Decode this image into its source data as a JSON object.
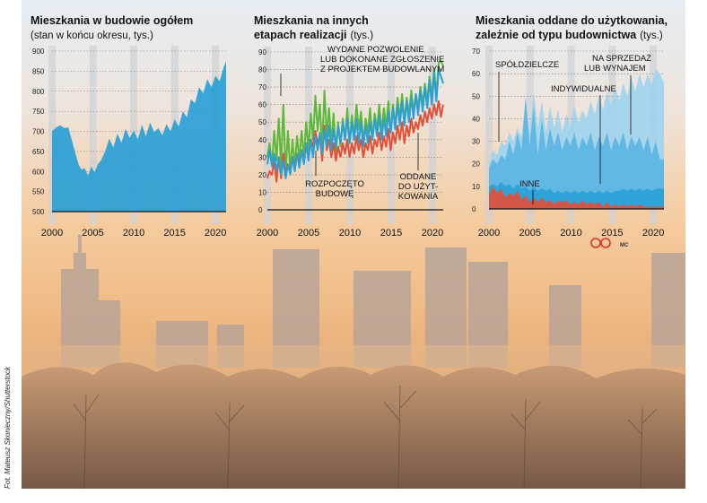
{
  "credit": "Fot. Mateusz Skonieczny/Shutterstock",
  "logo_text": "MC",
  "chart_data": [
    {
      "type": "area",
      "title": "Mieszkania w budowie ogółem",
      "subtitle": "(stan w końcu okresu, tys.)",
      "ylim": [
        500,
        900
      ],
      "yticks": [
        500,
        550,
        600,
        650,
        700,
        750,
        800,
        850,
        900
      ],
      "xlim": [
        2000,
        2021.3
      ],
      "xticks": [
        2000,
        2005,
        2010,
        2015,
        2020
      ],
      "color": "#2a9fd6",
      "series": [
        {
          "x": [
            2000,
            2000.5,
            2001,
            2001.5,
            2002,
            2002.5,
            2003,
            2003.3,
            2003.6,
            2004,
            2004.4,
            2004.8,
            2005.2,
            2005.6,
            2006,
            2006.5,
            2007,
            2007.5,
            2008,
            2008.5,
            2009,
            2009.5,
            2010,
            2010.5,
            2011,
            2011.5,
            2012,
            2012.5,
            2013,
            2013.5,
            2014,
            2014.5,
            2015,
            2015.5,
            2016,
            2016.5,
            2017,
            2017.5,
            2018,
            2018.5,
            2019,
            2019.5,
            2020,
            2020.5,
            2021,
            2021.3
          ],
          "values": [
            700,
            710,
            715,
            708,
            710,
            672,
            635,
            615,
            605,
            608,
            590,
            612,
            598,
            618,
            628,
            650,
            682,
            660,
            694,
            672,
            706,
            684,
            702,
            680,
            716,
            688,
            722,
            698,
            708,
            690,
            718,
            700,
            730,
            712,
            750,
            735,
            780,
            770,
            810,
            795,
            830,
            810,
            838,
            825,
            860,
            875
          ]
        }
      ]
    },
    {
      "type": "line",
      "title": "Mieszkania na innych etapach realizacji",
      "title_lines": [
        "Mieszkania na innych",
        "etapach realizacji"
      ],
      "title_unit": "(tys.)",
      "ylim": [
        0,
        90
      ],
      "yticks": [
        0,
        10,
        20,
        30,
        40,
        50,
        60,
        70,
        80,
        90
      ],
      "xlim": [
        2000,
        2021.3
      ],
      "xticks": [
        2000,
        2005,
        2010,
        2015,
        2020
      ],
      "annotations": [
        {
          "lines": [
            "WYDANE POZWOLENIE",
            "LUB DOKONANE ZGŁOSZENIE",
            "Z PROJEKTEM BUDOWLANYM"
          ]
        },
        {
          "lines": [
            "ROZPOCZĘTO",
            "BUDOWĘ"
          ]
        },
        {
          "lines": [
            "ODDANE",
            "DO UŻYT-",
            "KOWANIA"
          ]
        }
      ],
      "series": [
        {
          "name": "WYDANE POZWOLENIE LUB DOKONANE ZGŁOSZENIE Z PROJEKTEM BUDOWLANYM",
          "color": "#5cb83c",
          "values": [
            30,
            38,
            25,
            45,
            28,
            52,
            25,
            60,
            20,
            45,
            22,
            40,
            25,
            42,
            28,
            45,
            30,
            50,
            34,
            55,
            40,
            65,
            45,
            60,
            35,
            68,
            42,
            58,
            38,
            55,
            32,
            50,
            36,
            52,
            40,
            58,
            38,
            54,
            42,
            60,
            46,
            56,
            38,
            52,
            44,
            58,
            40,
            55,
            46,
            60,
            44,
            58,
            48,
            62,
            44,
            60,
            48,
            64,
            52,
            66,
            50,
            64,
            54,
            68,
            56,
            66,
            58,
            70,
            60,
            72,
            62,
            76,
            64,
            80,
            66,
            84,
            85,
            82
          ]
        },
        {
          "name": "ROZPOCZĘTO BUDOWĘ",
          "color": "#e2503a",
          "values": [
            18,
            22,
            20,
            28,
            16,
            30,
            18,
            32,
            20,
            26,
            22,
            30,
            24,
            32,
            26,
            34,
            28,
            36,
            30,
            40,
            36,
            45,
            38,
            42,
            28,
            48,
            34,
            40,
            30,
            38,
            28,
            36,
            30,
            38,
            32,
            40,
            30,
            38,
            32,
            42,
            34,
            40,
            30,
            38,
            34,
            42,
            32,
            40,
            36,
            44,
            34,
            42,
            36,
            46,
            34,
            44,
            38,
            48,
            40,
            50,
            38,
            48,
            42,
            52,
            44,
            50,
            46,
            54,
            48,
            56,
            50,
            58,
            52,
            60,
            54,
            62,
            53,
            60
          ]
        },
        {
          "name": "ODDANE DO UŻYTKOWANIA",
          "color": "#2a9fd6",
          "values": [
            26,
            34,
            25,
            32,
            22,
            30,
            20,
            28,
            18,
            26,
            20,
            30,
            22,
            32,
            24,
            34,
            26,
            38,
            28,
            40,
            30,
            42,
            34,
            44,
            32,
            46,
            36,
            48,
            34,
            46,
            36,
            48,
            38,
            50,
            40,
            52,
            38,
            50,
            40,
            52,
            38,
            50,
            36,
            48,
            38,
            50,
            40,
            52,
            42,
            54,
            40,
            52,
            42,
            56,
            44,
            58,
            46,
            60,
            48,
            62,
            48,
            62,
            50,
            64,
            52,
            66,
            54,
            68,
            56,
            70,
            58,
            74,
            60,
            78,
            62,
            80,
            76,
            72
          ]
        }
      ]
    },
    {
      "type": "area",
      "title": "Mieszkania oddane do użytkowania, zależnie od typu budownictwa",
      "title_lines": [
        "Mieszkania oddane do użytkowania,",
        "zależnie od typu budownictwa"
      ],
      "title_unit": "(tys.)",
      "ylim": [
        0,
        70
      ],
      "yticks": [
        0,
        10,
        20,
        30,
        40,
        50,
        60,
        70
      ],
      "xlim": [
        2000,
        2021.3
      ],
      "xticks": [
        2000,
        2005,
        2010,
        2015,
        2020
      ],
      "annotations": [
        "SPÓŁDZIELCZE",
        "INDYWIDUALNE",
        "NA SPRZEDAŻ LUB WYNAJEM",
        "INNE"
      ],
      "series": [
        {
          "name": "NA SPRZEDAŻ LUB WYNAJEM",
          "color": "#9fd4ef",
          "values": [
            20,
            26,
            24,
            30,
            28,
            34,
            30,
            36,
            32,
            48,
            34,
            52,
            36,
            48,
            34,
            46,
            36,
            44,
            34,
            42,
            36,
            46,
            38,
            44,
            40,
            48,
            42,
            50,
            44,
            52,
            46,
            54,
            48,
            56,
            50,
            58,
            52,
            60,
            54,
            60,
            55,
            62,
            60,
            56
          ]
        },
        {
          "name": "INDYWIDUALNE",
          "color": "#5cb5e4",
          "values": [
            18,
            22,
            20,
            24,
            22,
            30,
            24,
            34,
            26,
            50,
            28,
            46,
            24,
            40,
            26,
            36,
            28,
            34,
            26,
            32,
            28,
            34,
            26,
            32,
            28,
            34,
            26,
            32,
            28,
            34,
            26,
            32,
            28,
            34,
            26,
            32,
            28,
            32,
            26,
            32,
            24,
            30,
            22,
            22
          ]
        },
        {
          "name": "SPÓŁDZIELCZE",
          "color": "#2a9fd6",
          "values": [
            10,
            11,
            10,
            12,
            10,
            11,
            9,
            11,
            9,
            10,
            8,
            10,
            8,
            9,
            8,
            9,
            7,
            8,
            7,
            8,
            7,
            8,
            7,
            8,
            7,
            8,
            7,
            8,
            7,
            8,
            7,
            8,
            8,
            9,
            8,
            9,
            8,
            9,
            8,
            9,
            8,
            9,
            9,
            9
          ]
        },
        {
          "name": "INNE",
          "color": "#e2503a",
          "values": [
            6,
            10,
            7,
            9,
            5,
            7,
            6,
            8,
            4,
            6,
            3,
            5,
            3,
            5,
            3,
            4,
            2,
            4,
            3,
            4,
            2,
            3,
            2,
            4,
            2,
            3,
            2,
            3,
            1,
            3,
            1,
            2,
            1,
            2,
            1,
            2,
            1,
            2,
            1,
            1,
            1,
            1,
            1,
            1
          ]
        }
      ]
    }
  ]
}
